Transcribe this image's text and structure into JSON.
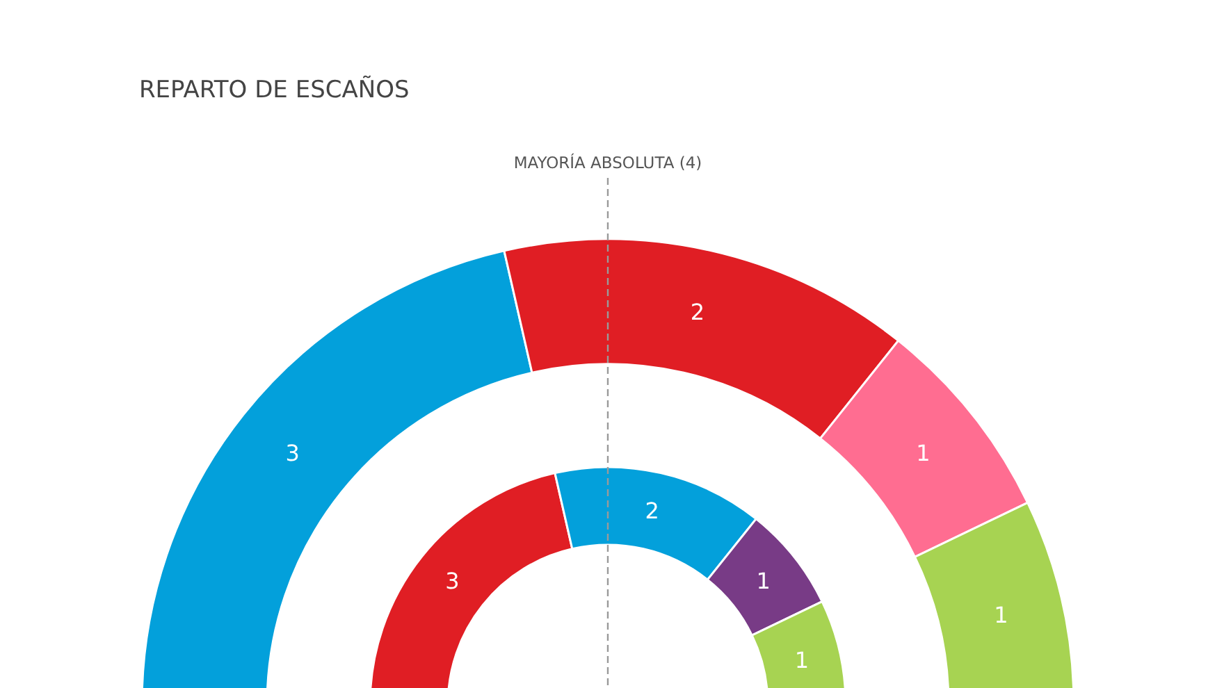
{
  "chart_data": {
    "type": "donut",
    "title": "REPARTO DE ESCAÑOS",
    "annotations": [
      "MAYORÍA ABSOLUTA (4)"
    ],
    "categories": [
      null,
      null,
      null,
      null
    ],
    "series": [
      {
        "values": [
          3,
          2,
          1,
          1
        ],
        "colors": [
          "#03a0db",
          "#e01e24",
          "#ff6d91",
          "#a7d352"
        ]
      },
      {
        "values": [
          3,
          2,
          1,
          1
        ],
        "colors": [
          "#e01e24",
          "#03a0db",
          "#783b86",
          "#a7d352"
        ]
      }
    ],
    "data_labels": true
  }
}
